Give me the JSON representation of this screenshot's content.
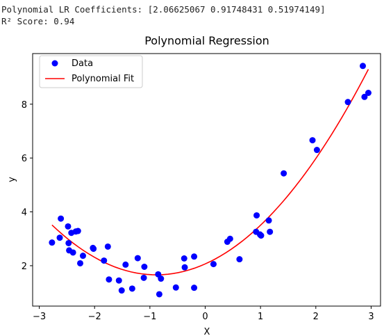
{
  "console": {
    "line1": "Polynomial LR Coefficients: [2.06625067 0.91748431 0.51974149]",
    "line2": "R² Score: 0.94"
  },
  "chart_data": {
    "type": "scatter",
    "title": "Polynomial Regression",
    "xlabel": "X",
    "ylabel": "y",
    "xlim": [
      -3.12,
      3.17
    ],
    "ylim": [
      0.5,
      9.88
    ],
    "xticks": [
      -3,
      -2,
      -1,
      0,
      1,
      2,
      3
    ],
    "yticks": [
      2,
      4,
      6,
      8
    ],
    "legend_position": "upper-left",
    "colors": {
      "data": "#0000ff",
      "fit": "#ff0000"
    },
    "series": [
      {
        "name": "Data",
        "kind": "scatter",
        "points": [
          [
            -2.77,
            2.86
          ],
          [
            -2.63,
            3.04
          ],
          [
            -2.61,
            3.75
          ],
          [
            -2.48,
            3.46
          ],
          [
            -2.47,
            2.84
          ],
          [
            -2.46,
            2.57
          ],
          [
            -2.42,
            3.22
          ],
          [
            -2.39,
            2.49
          ],
          [
            -2.34,
            3.27
          ],
          [
            -2.3,
            3.29
          ],
          [
            -2.26,
            2.09
          ],
          [
            -2.21,
            2.37
          ],
          [
            -2.03,
            2.66
          ],
          [
            -2.02,
            2.63
          ],
          [
            -1.83,
            2.19
          ],
          [
            -1.76,
            2.71
          ],
          [
            -1.74,
            1.49
          ],
          [
            -1.56,
            1.45
          ],
          [
            -1.51,
            1.08
          ],
          [
            -1.44,
            2.04
          ],
          [
            -1.32,
            1.15
          ],
          [
            -1.22,
            2.28
          ],
          [
            -1.11,
            1.55
          ],
          [
            -1.1,
            1.96
          ],
          [
            -0.85,
            1.68
          ],
          [
            -0.83,
            0.94
          ],
          [
            -0.8,
            1.52
          ],
          [
            -0.53,
            1.19
          ],
          [
            -0.38,
            2.27
          ],
          [
            -0.37,
            1.94
          ],
          [
            -0.2,
            1.18
          ],
          [
            -0.2,
            2.34
          ],
          [
            0.15,
            2.06
          ],
          [
            0.4,
            2.89
          ],
          [
            0.45,
            3.0
          ],
          [
            0.62,
            2.24
          ],
          [
            0.92,
            3.26
          ],
          [
            0.93,
            3.87
          ],
          [
            0.99,
            3.16
          ],
          [
            1.01,
            3.12
          ],
          [
            1.15,
            3.68
          ],
          [
            1.17,
            3.26
          ],
          [
            1.42,
            5.43
          ],
          [
            1.94,
            6.66
          ],
          [
            2.02,
            6.3
          ],
          [
            2.58,
            8.08
          ],
          [
            2.85,
            9.42
          ],
          [
            2.88,
            8.27
          ],
          [
            2.95,
            8.42
          ]
        ]
      },
      {
        "name": "Polynomial Fit",
        "kind": "line",
        "coefficients": [
          2.06625067,
          0.91748431,
          0.51974149
        ],
        "x_range": [
          -2.77,
          2.95
        ]
      }
    ]
  }
}
